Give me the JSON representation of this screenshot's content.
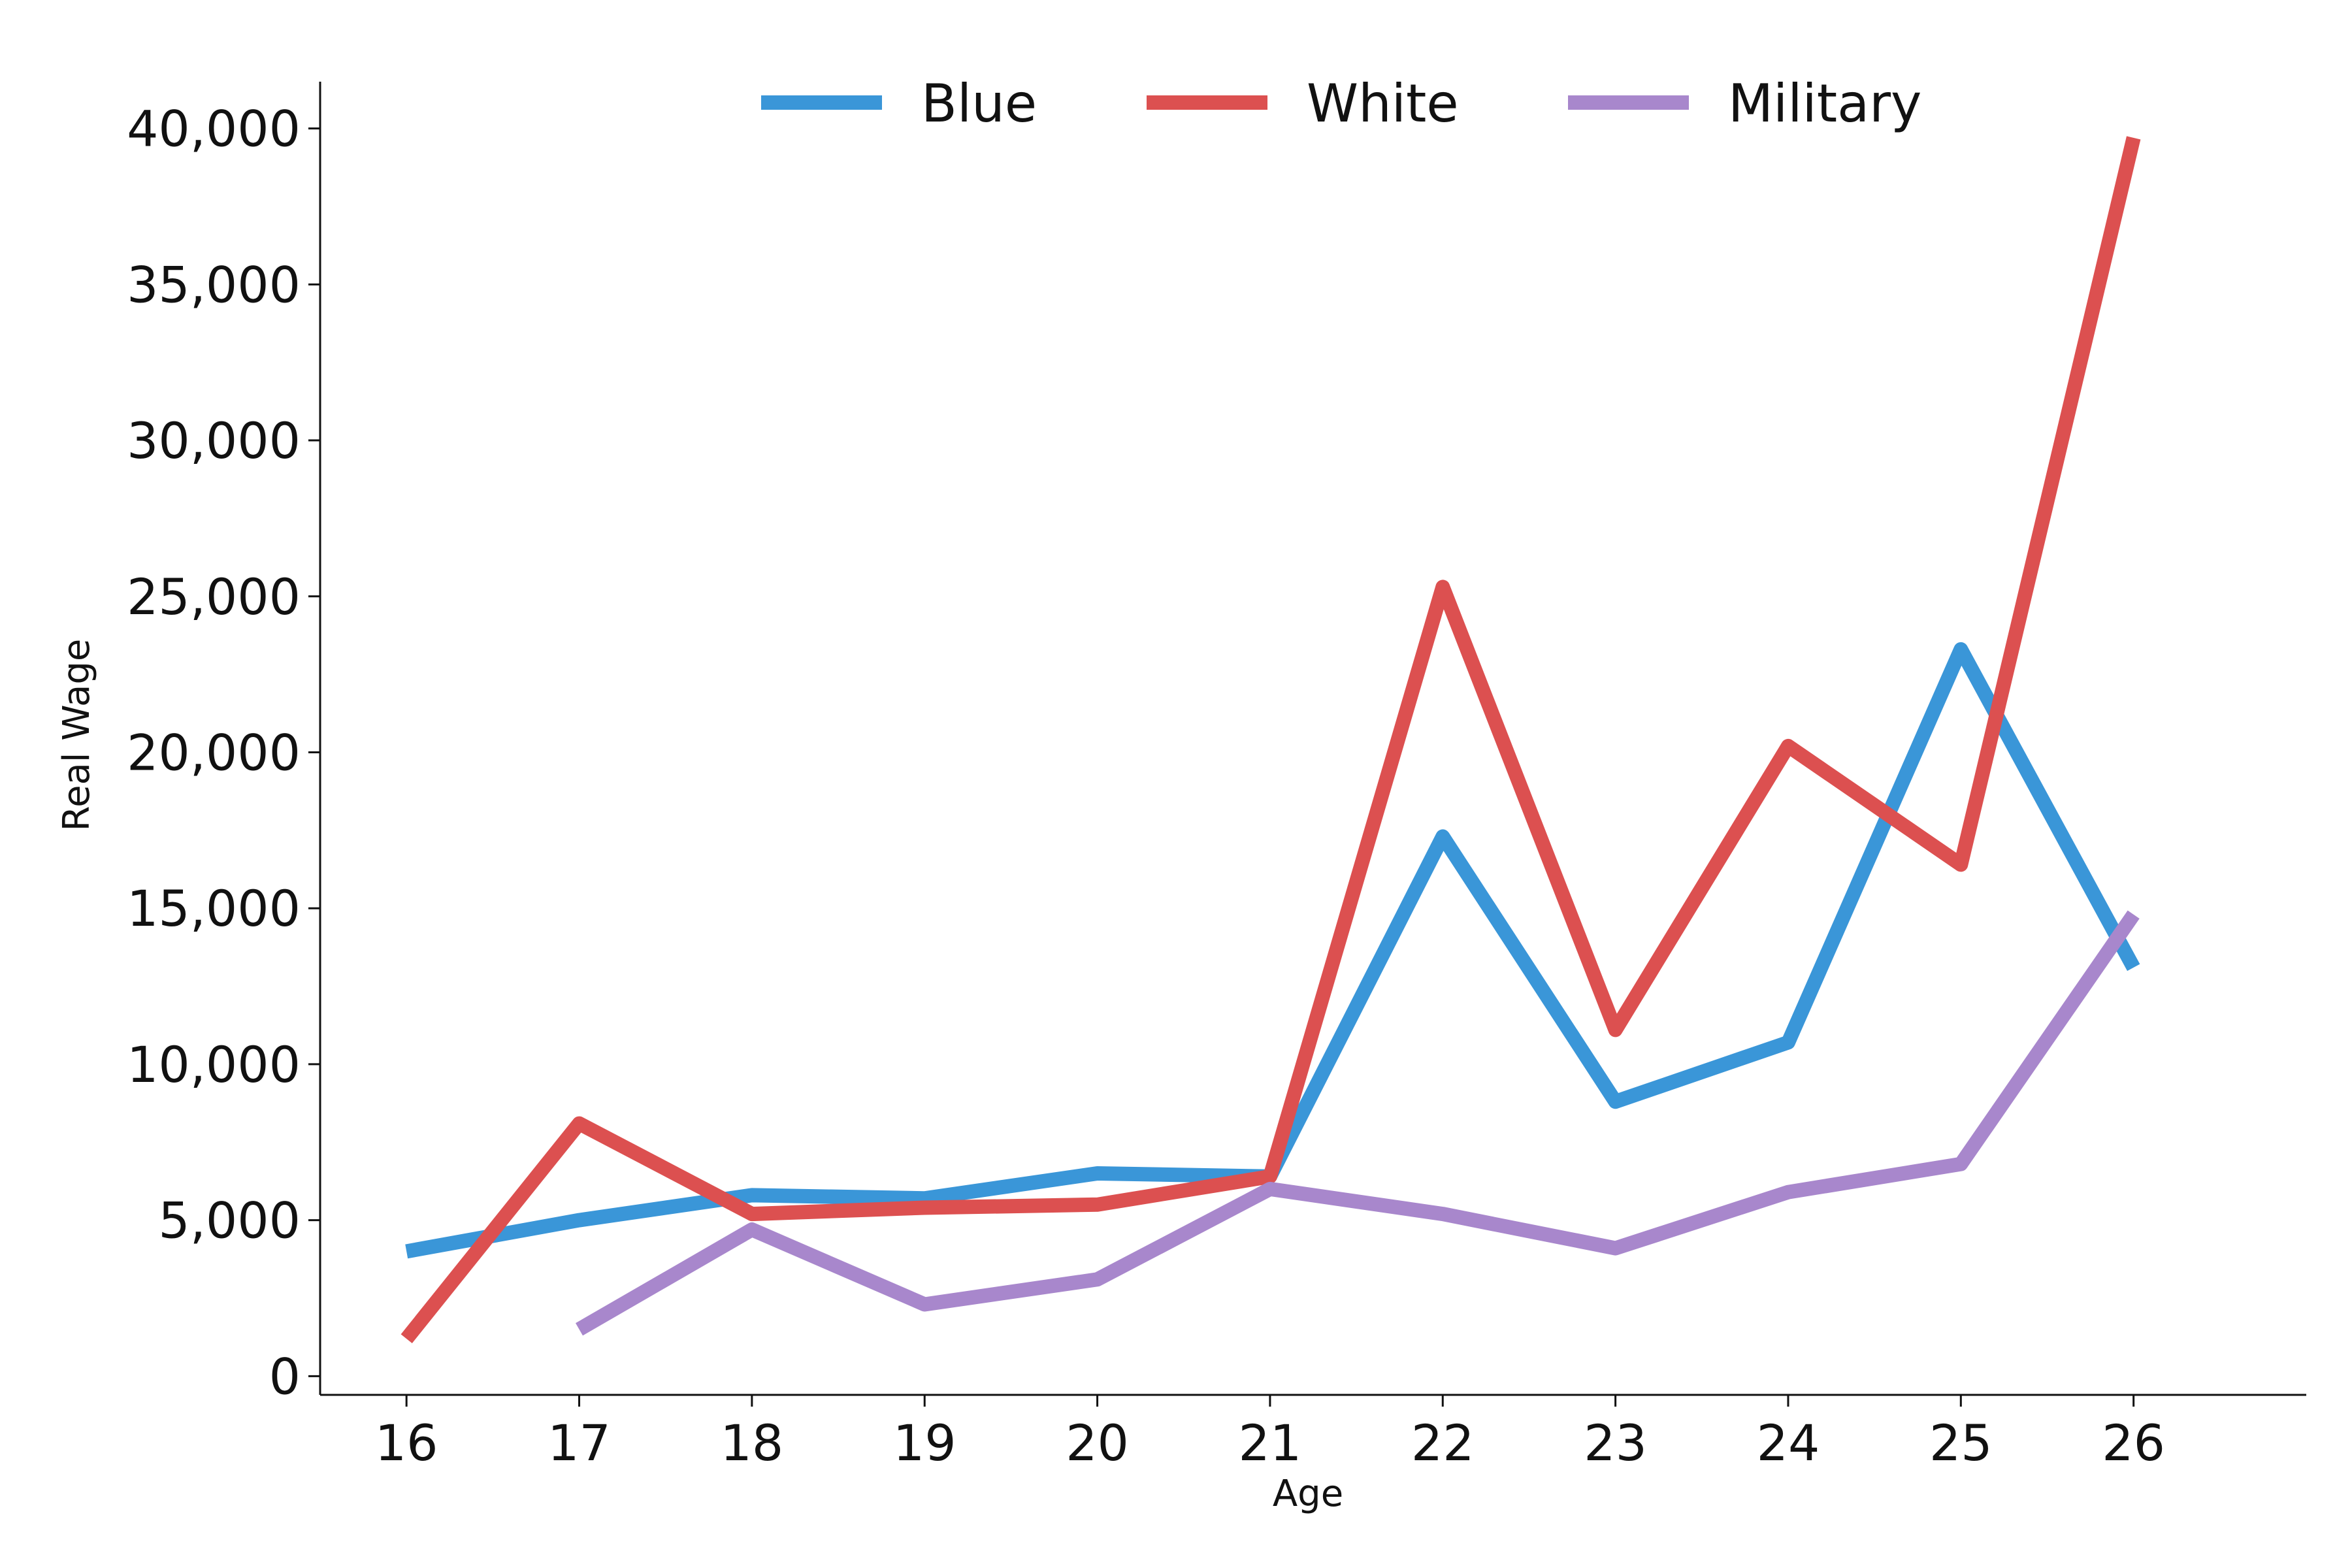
{
  "chart_data": {
    "type": "line",
    "title": "",
    "xlabel": "Age",
    "ylabel": "Real Wage",
    "x": [
      16,
      17,
      18,
      19,
      20,
      21,
      22,
      23,
      24,
      25,
      26
    ],
    "x_tick_labels": [
      "16",
      "17",
      "18",
      "19",
      "20",
      "21",
      "22",
      "23",
      "24",
      "25",
      "26"
    ],
    "y_ticks": [
      0,
      5000,
      10000,
      15000,
      20000,
      25000,
      30000,
      35000,
      40000
    ],
    "y_tick_labels": [
      "0",
      "5,000",
      "10,000",
      "15,000",
      "20,000",
      "25,000",
      "30,000",
      "35,000",
      "40,000"
    ],
    "xlim": [
      15.5,
      27.0
    ],
    "ylim": [
      -600,
      41500
    ],
    "grid": false,
    "legend_placement": "top-center",
    "series": [
      {
        "name": "Blue",
        "color": "#3a96d8",
        "values": [
          4000,
          5000,
          5800,
          5700,
          6500,
          6400,
          17300,
          8800,
          10700,
          23300,
          13100
        ]
      },
      {
        "name": "White",
        "color": "#dc5050",
        "values": [
          1200,
          8100,
          5200,
          5400,
          5500,
          6400,
          25300,
          11100,
          20200,
          16400,
          39700
        ]
      },
      {
        "name": "Military",
        "color": "#a887cc",
        "values": [
          null,
          1500,
          4700,
          2300,
          3100,
          6000,
          5200,
          4100,
          5900,
          6800,
          14800
        ]
      }
    ]
  }
}
